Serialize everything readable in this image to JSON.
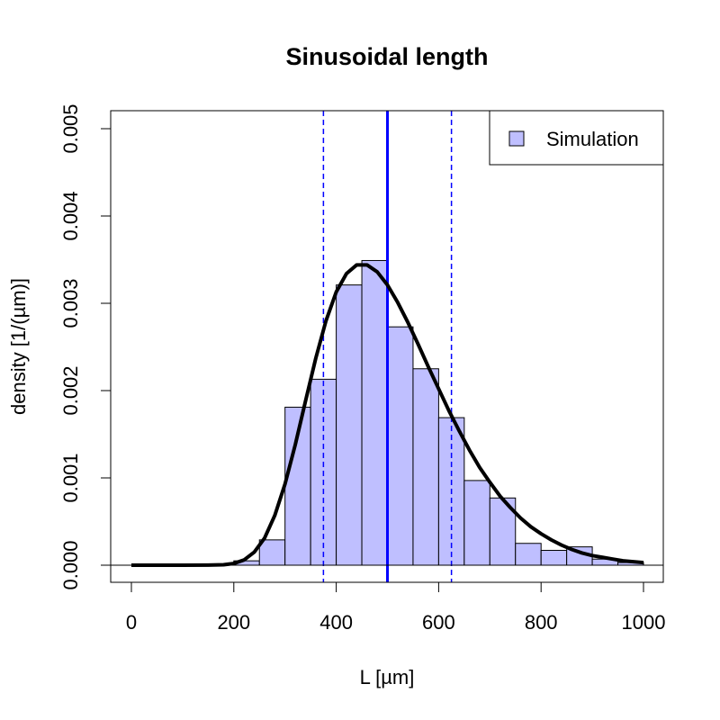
{
  "chart_data": {
    "type": "bar",
    "title": "Sinusoidal length",
    "xlabel": "L [µm]",
    "ylabel": "density [1/(µm)]",
    "xlim": [
      0,
      1000
    ],
    "ylim": [
      0,
      0.005
    ],
    "x_ticks": [
      "0",
      "200",
      "400",
      "600",
      "800",
      "1000"
    ],
    "y_ticks": [
      "0.000",
      "0.001",
      "0.002",
      "0.003",
      "0.004",
      "0.005"
    ],
    "grid": false,
    "legend": {
      "position": "top-right",
      "entries": [
        "Simulation"
      ]
    },
    "histogram": {
      "name": "Simulation",
      "fill": "#bfbfff",
      "bin_width": 50,
      "bins": [
        {
          "x0": 200,
          "x1": 250,
          "density": 5e-05
        },
        {
          "x0": 250,
          "x1": 300,
          "density": 0.00029
        },
        {
          "x0": 300,
          "x1": 350,
          "density": 0.00181
        },
        {
          "x0": 350,
          "x1": 400,
          "density": 0.00213
        },
        {
          "x0": 400,
          "x1": 450,
          "density": 0.00321
        },
        {
          "x0": 450,
          "x1": 500,
          "density": 0.00349
        },
        {
          "x0": 500,
          "x1": 550,
          "density": 0.00273
        },
        {
          "x0": 550,
          "x1": 600,
          "density": 0.00225
        },
        {
          "x0": 600,
          "x1": 650,
          "density": 0.00169
        },
        {
          "x0": 650,
          "x1": 700,
          "density": 0.00097
        },
        {
          "x0": 700,
          "x1": 750,
          "density": 0.00077
        },
        {
          "x0": 750,
          "x1": 800,
          "density": 0.00025
        },
        {
          "x0": 800,
          "x1": 850,
          "density": 0.00017
        },
        {
          "x0": 850,
          "x1": 900,
          "density": 0.00021
        },
        {
          "x0": 900,
          "x1": 950,
          "density": 7e-05
        },
        {
          "x0": 950,
          "x1": 1000,
          "density": 3e-05
        }
      ]
    },
    "density_curve": {
      "color": "#000000",
      "x": [
        0,
        100,
        150,
        180,
        200,
        220,
        240,
        260,
        280,
        300,
        320,
        340,
        360,
        380,
        400,
        420,
        440,
        460,
        480,
        500,
        520,
        540,
        560,
        580,
        600,
        620,
        640,
        660,
        680,
        700,
        720,
        740,
        760,
        780,
        800,
        820,
        840,
        860,
        880,
        900,
        920,
        940,
        960,
        980,
        1000
      ],
      "y": [
        0,
        0,
        1e-06,
        5e-06,
        2e-05,
        6e-05,
        0.00015,
        0.00031,
        0.00057,
        0.00093,
        0.00138,
        0.00188,
        0.00237,
        0.0028,
        0.00313,
        0.00334,
        0.00344,
        0.00344,
        0.00336,
        0.00321,
        0.00301,
        0.00278,
        0.00253,
        0.00227,
        0.00202,
        0.00177,
        0.00154,
        0.00132,
        0.00112,
        0.00095,
        0.00079,
        0.00066,
        0.00054,
        0.00044,
        0.00036,
        0.00029,
        0.00023,
        0.00018,
        0.00014,
        0.00011,
        9e-05,
        7e-05,
        5e-05,
        4e-05,
        3e-05
      ]
    },
    "vlines": [
      {
        "x": 500,
        "style": "solid",
        "color": "#0000ff"
      },
      {
        "x": 375,
        "style": "dashed",
        "color": "#0000ff"
      },
      {
        "x": 625,
        "style": "dashed",
        "color": "#0000ff"
      }
    ]
  }
}
